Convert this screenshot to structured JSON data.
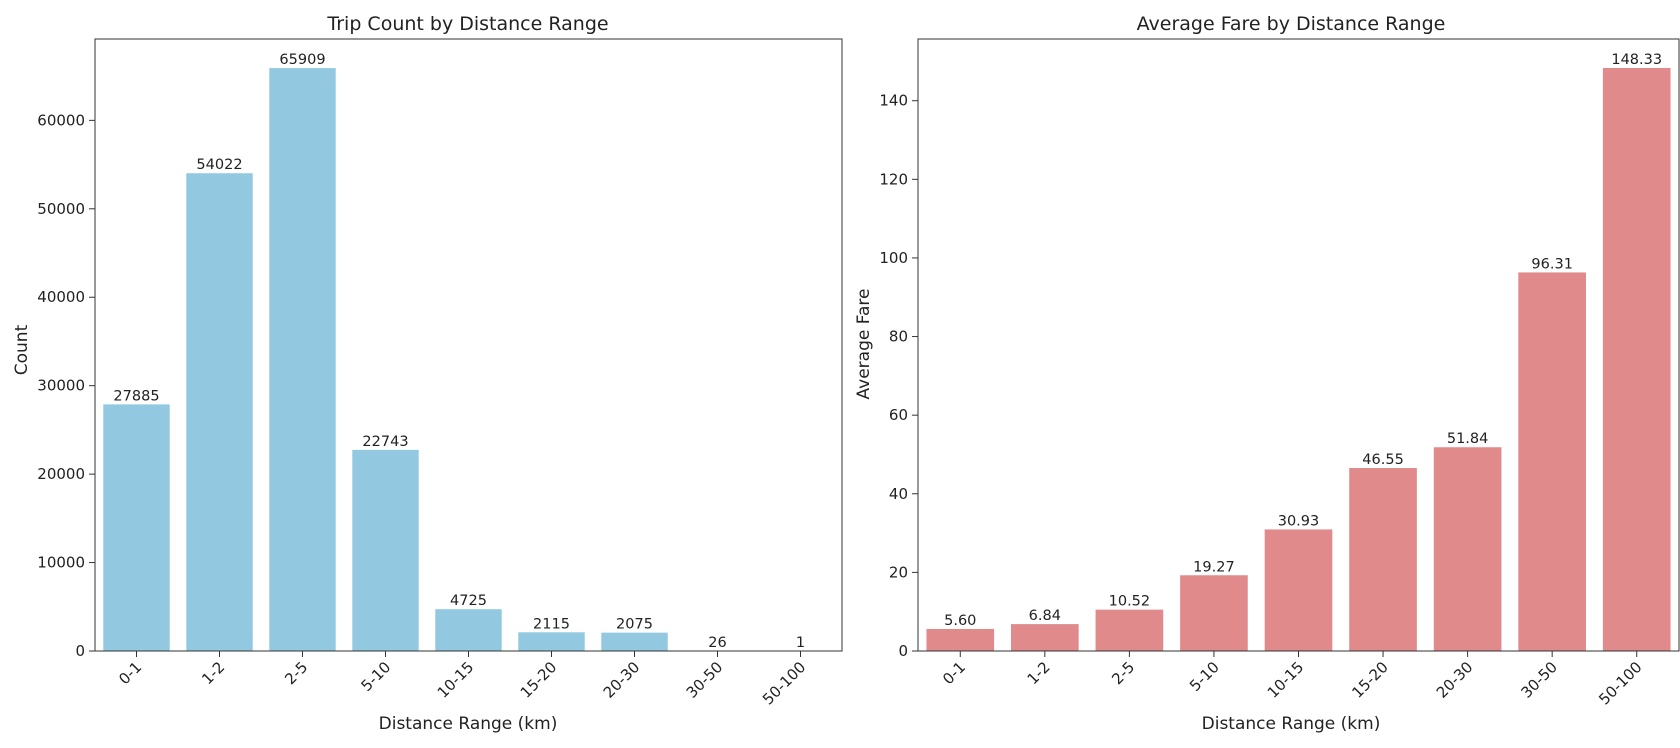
{
  "chart_data": [
    {
      "type": "bar",
      "title": "Trip Count by Distance Range",
      "xlabel": "Distance Range (km)",
      "ylabel": "Count",
      "categories": [
        "0-1",
        "1-2",
        "2-5",
        "5-10",
        "10-15",
        "15-20",
        "20-30",
        "30-50",
        "50-100"
      ],
      "values": [
        27885,
        54022,
        65909,
        22743,
        4725,
        2115,
        2075,
        26,
        1
      ],
      "data_labels": [
        "27885",
        "54022",
        "65909",
        "22743",
        "4725",
        "2115",
        "2075",
        "26",
        "1"
      ],
      "yticks": [
        0,
        10000,
        20000,
        30000,
        40000,
        50000,
        60000
      ],
      "ylim": [
        0,
        69200
      ],
      "bar_color": "#92c9e0",
      "grid": false,
      "legend": "none"
    },
    {
      "type": "bar",
      "title": "Average Fare by Distance Range",
      "xlabel": "Distance Range (km)",
      "ylabel": "Average Fare",
      "categories": [
        "0-1",
        "1-2",
        "2-5",
        "5-10",
        "10-15",
        "15-20",
        "20-30",
        "30-50",
        "50-100"
      ],
      "values": [
        5.6,
        6.84,
        10.52,
        19.27,
        30.93,
        46.55,
        51.84,
        96.31,
        148.33
      ],
      "data_labels": [
        "5.60",
        "6.84",
        "10.52",
        "19.27",
        "30.93",
        "46.55",
        "51.84",
        "96.31",
        "148.33"
      ],
      "yticks": [
        0,
        20,
        40,
        60,
        80,
        100,
        120,
        140
      ],
      "ylim": [
        0,
        155.7
      ],
      "bar_color": "#e08a8c",
      "grid": false,
      "legend": "none"
    }
  ]
}
